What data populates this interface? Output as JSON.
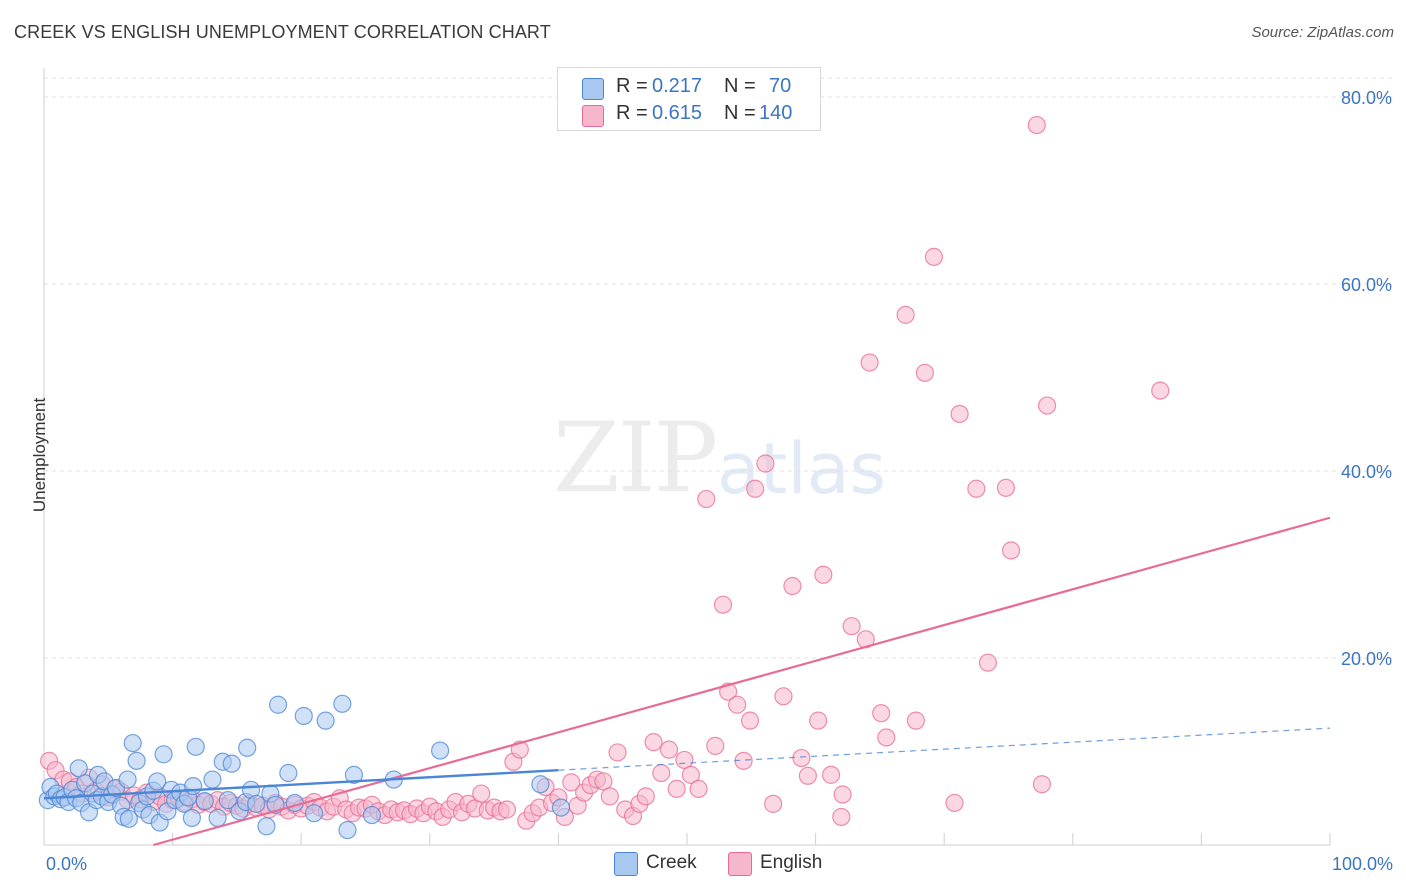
{
  "title": "CREEK VS ENGLISH UNEMPLOYMENT CORRELATION CHART",
  "source": "Source: ZipAtlas.com",
  "watermark": {
    "zip": "ZIP",
    "atlas": "atlas"
  },
  "legend": {
    "rows": [
      {
        "r_label": "R =",
        "r_value": "0.217",
        "n_label": "N =",
        "n_value": "70",
        "color": "#a9c8f0"
      },
      {
        "r_label": "R =",
        "r_value": "0.615",
        "n_label": "N =",
        "n_value": "140",
        "color": "#f6b6cb"
      }
    ]
  },
  "chart_data": {
    "type": "scatter",
    "title": "CREEK VS ENGLISH UNEMPLOYMENT CORRELATION CHART",
    "xlabel": "",
    "ylabel": "Unemployment",
    "xlim": [
      0,
      100
    ],
    "ylim": [
      0,
      80
    ],
    "x_tick_labels": [
      "0.0%",
      "100.0%"
    ],
    "y_ticks": [
      20,
      40,
      60,
      80
    ],
    "y_tick_labels": [
      "20.0%",
      "40.0%",
      "60.0%",
      "80.0%"
    ],
    "grid": true,
    "legend_position": "bottom",
    "series": [
      {
        "name": "Creek",
        "color": "#4a86d4",
        "fill": "#a9c8f0",
        "trend": {
          "x0": 0,
          "y0": 5.0,
          "x1": 40,
          "y1": 8.0,
          "dashed_to": [
            100,
            12.5
          ]
        },
        "points": [
          [
            0.3,
            4.8
          ],
          [
            0.5,
            6.2
          ],
          [
            0.8,
            5.2
          ],
          [
            1.0,
            5.5
          ],
          [
            1.3,
            4.9
          ],
          [
            1.6,
            5.1
          ],
          [
            1.9,
            4.6
          ],
          [
            2.2,
            5.9
          ],
          [
            2.5,
            5.0
          ],
          [
            2.7,
            8.2
          ],
          [
            2.9,
            4.5
          ],
          [
            3.2,
            6.6
          ],
          [
            3.5,
            3.5
          ],
          [
            3.8,
            5.5
          ],
          [
            4.1,
            4.8
          ],
          [
            4.2,
            7.5
          ],
          [
            4.5,
            5.2
          ],
          [
            4.7,
            6.8
          ],
          [
            5.0,
            4.6
          ],
          [
            5.3,
            5.4
          ],
          [
            5.6,
            6.1
          ],
          [
            6.0,
            4.2
          ],
          [
            6.2,
            3.0
          ],
          [
            6.5,
            7.0
          ],
          [
            6.6,
            2.8
          ],
          [
            6.9,
            10.9
          ],
          [
            7.2,
            9.0
          ],
          [
            7.4,
            4.5
          ],
          [
            7.7,
            3.8
          ],
          [
            8.0,
            5.2
          ],
          [
            8.2,
            3.2
          ],
          [
            8.5,
            5.8
          ],
          [
            8.8,
            6.8
          ],
          [
            9.0,
            2.4
          ],
          [
            9.3,
            9.7
          ],
          [
            9.6,
            3.6
          ],
          [
            9.9,
            5.9
          ],
          [
            10.2,
            4.8
          ],
          [
            10.6,
            5.6
          ],
          [
            10.9,
            4.4
          ],
          [
            11.2,
            5.1
          ],
          [
            11.5,
            2.9
          ],
          [
            11.6,
            6.3
          ],
          [
            11.8,
            10.5
          ],
          [
            12.5,
            4.7
          ],
          [
            13.1,
            7.0
          ],
          [
            13.5,
            2.9
          ],
          [
            13.9,
            8.9
          ],
          [
            14.3,
            4.8
          ],
          [
            14.6,
            8.7
          ],
          [
            15.2,
            3.6
          ],
          [
            15.7,
            4.6
          ],
          [
            15.8,
            10.4
          ],
          [
            16.1,
            5.9
          ],
          [
            16.5,
            4.4
          ],
          [
            17.3,
            2.0
          ],
          [
            17.6,
            5.5
          ],
          [
            18.0,
            4.3
          ],
          [
            18.2,
            15.0
          ],
          [
            19.0,
            7.7
          ],
          [
            19.5,
            4.5
          ],
          [
            20.2,
            13.8
          ],
          [
            21.0,
            3.4
          ],
          [
            21.9,
            13.3
          ],
          [
            23.2,
            15.1
          ],
          [
            23.6,
            1.6
          ],
          [
            24.1,
            7.5
          ],
          [
            25.5,
            3.2
          ],
          [
            27.2,
            7.0
          ],
          [
            30.8,
            10.1
          ],
          [
            38.6,
            6.5
          ],
          [
            40.2,
            4.0
          ]
        ]
      },
      {
        "name": "English",
        "color": "#e86b96",
        "fill": "#f6b6cb",
        "trend": {
          "x0": 8.5,
          "y0": 0.0,
          "x1": 100,
          "y1": 35.0
        },
        "points": [
          [
            0.4,
            9.0
          ],
          [
            0.9,
            8.0
          ],
          [
            1.5,
            7.0
          ],
          [
            2.0,
            6.8
          ],
          [
            2.5,
            6.2
          ],
          [
            3.0,
            5.5
          ],
          [
            3.5,
            7.2
          ],
          [
            4.0,
            5.8
          ],
          [
            4.5,
            6.5
          ],
          [
            5.0,
            5.1
          ],
          [
            5.5,
            6.0
          ],
          [
            6.0,
            5.7
          ],
          [
            6.5,
            4.8
          ],
          [
            7.0,
            5.3
          ],
          [
            7.5,
            4.9
          ],
          [
            8.0,
            5.6
          ],
          [
            8.5,
            4.6
          ],
          [
            9.0,
            5.2
          ],
          [
            9.5,
            4.4
          ],
          [
            10.0,
            4.8
          ],
          [
            10.5,
            5.0
          ],
          [
            11.0,
            4.5
          ],
          [
            11.5,
            4.9
          ],
          [
            12.0,
            4.3
          ],
          [
            12.5,
            4.6
          ],
          [
            13.0,
            4.4
          ],
          [
            13.5,
            4.8
          ],
          [
            14.0,
            4.1
          ],
          [
            14.5,
            4.5
          ],
          [
            15.0,
            4.2
          ],
          [
            15.5,
            3.9
          ],
          [
            16.0,
            4.4
          ],
          [
            16.5,
            4.0
          ],
          [
            17.0,
            4.2
          ],
          [
            17.5,
            3.8
          ],
          [
            18.0,
            4.5
          ],
          [
            18.5,
            4.1
          ],
          [
            19.0,
            3.7
          ],
          [
            19.5,
            4.3
          ],
          [
            20.0,
            3.9
          ],
          [
            20.5,
            4.2
          ],
          [
            21.0,
            4.6
          ],
          [
            21.5,
            4.0
          ],
          [
            22.0,
            3.6
          ],
          [
            22.5,
            4.1
          ],
          [
            23.0,
            5.0
          ],
          [
            23.5,
            3.8
          ],
          [
            24.0,
            3.4
          ],
          [
            24.5,
            4.0
          ],
          [
            25.0,
            3.9
          ],
          [
            25.5,
            4.3
          ],
          [
            26.0,
            3.6
          ],
          [
            26.5,
            3.2
          ],
          [
            27.0,
            3.8
          ],
          [
            27.5,
            3.5
          ],
          [
            28.0,
            3.7
          ],
          [
            28.5,
            3.3
          ],
          [
            29.0,
            3.9
          ],
          [
            29.5,
            3.4
          ],
          [
            30.0,
            4.1
          ],
          [
            30.5,
            3.6
          ],
          [
            31.0,
            3.0
          ],
          [
            31.5,
            3.8
          ],
          [
            32.0,
            4.6
          ],
          [
            32.5,
            3.5
          ],
          [
            33.0,
            4.4
          ],
          [
            33.5,
            3.9
          ],
          [
            34.0,
            5.5
          ],
          [
            34.5,
            3.7
          ],
          [
            35.0,
            4.0
          ],
          [
            35.5,
            3.6
          ],
          [
            36.0,
            3.8
          ],
          [
            36.5,
            8.9
          ],
          [
            37.0,
            10.2
          ],
          [
            37.5,
            2.6
          ],
          [
            38.0,
            3.4
          ],
          [
            38.5,
            4.0
          ],
          [
            39.0,
            6.2
          ],
          [
            39.5,
            4.5
          ],
          [
            40.0,
            5.1
          ],
          [
            40.5,
            3.0
          ],
          [
            41.0,
            6.7
          ],
          [
            41.5,
            4.2
          ],
          [
            42.0,
            5.6
          ],
          [
            42.5,
            6.4
          ],
          [
            43.0,
            7.0
          ],
          [
            43.5,
            6.8
          ],
          [
            44.0,
            5.2
          ],
          [
            44.6,
            9.9
          ],
          [
            45.2,
            3.8
          ],
          [
            45.8,
            3.1
          ],
          [
            46.3,
            4.4
          ],
          [
            46.8,
            5.2
          ],
          [
            47.4,
            11.0
          ],
          [
            48.0,
            7.7
          ],
          [
            48.6,
            10.2
          ],
          [
            49.2,
            6.0
          ],
          [
            49.8,
            9.1
          ],
          [
            50.3,
            7.5
          ],
          [
            50.9,
            6.0
          ],
          [
            51.5,
            37.0
          ],
          [
            52.2,
            10.6
          ],
          [
            52.8,
            25.7
          ],
          [
            53.2,
            16.4
          ],
          [
            53.9,
            15.0
          ],
          [
            54.4,
            9.0
          ],
          [
            54.9,
            13.3
          ],
          [
            55.3,
            38.1
          ],
          [
            56.1,
            40.8
          ],
          [
            56.7,
            4.4
          ],
          [
            57.5,
            15.9
          ],
          [
            58.2,
            27.7
          ],
          [
            58.9,
            9.3
          ],
          [
            59.4,
            7.4
          ],
          [
            60.2,
            13.3
          ],
          [
            60.6,
            28.9
          ],
          [
            61.2,
            7.5
          ],
          [
            62.0,
            3.0
          ],
          [
            62.1,
            5.4
          ],
          [
            62.8,
            23.4
          ],
          [
            63.9,
            22.0
          ],
          [
            64.2,
            51.6
          ],
          [
            65.1,
            14.1
          ],
          [
            65.5,
            11.5
          ],
          [
            67.0,
            56.7
          ],
          [
            67.8,
            13.3
          ],
          [
            68.5,
            50.5
          ],
          [
            69.2,
            62.9
          ],
          [
            70.8,
            4.5
          ],
          [
            71.2,
            46.1
          ],
          [
            72.5,
            38.1
          ],
          [
            73.4,
            19.5
          ],
          [
            74.8,
            38.2
          ],
          [
            75.2,
            31.5
          ],
          [
            77.2,
            77.0
          ],
          [
            77.6,
            6.5
          ],
          [
            78.0,
            47.0
          ],
          [
            86.8,
            48.6
          ]
        ]
      }
    ]
  }
}
